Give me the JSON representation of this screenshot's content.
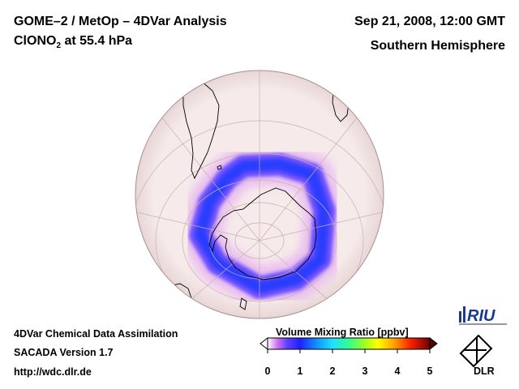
{
  "header": {
    "title_line1": "GOME–2 / MetOp – 4DVar Analysis",
    "species_prefix": "ClONO",
    "species_subscript": "2",
    "species_suffix": " at 55.4 hPa",
    "datetime": "Sep 21, 2008, 12:00 GMT",
    "region": "Southern Hemisphere"
  },
  "footer": {
    "line1": "4DVar Chemical Data Assimilation",
    "line2": "SACADA Version 1.7",
    "line3": "http://wdc.dlr.de"
  },
  "colorbar": {
    "title": "Volume Mixing Ratio [ppbv]",
    "min": 0,
    "max": 5,
    "ticks": [
      "0",
      "1",
      "2",
      "3",
      "4",
      "5"
    ],
    "colors": [
      "#ffffff",
      "#d070f0",
      "#8040ff",
      "#2020ff",
      "#1080ff",
      "#20e0ff",
      "#30ff90",
      "#a0ff20",
      "#ffff00",
      "#ffa000",
      "#ff2000",
      "#c00000",
      "#600000"
    ],
    "extend": "both"
  },
  "logos": {
    "riu": "RIU",
    "dlr": "DLR"
  },
  "map": {
    "projection": "orthographic",
    "hemisphere": "south",
    "background_color": "#f5e8e8",
    "vortex_ring_color": "#2a3cff",
    "vortex_peak_ppbv": 0.8
  }
}
